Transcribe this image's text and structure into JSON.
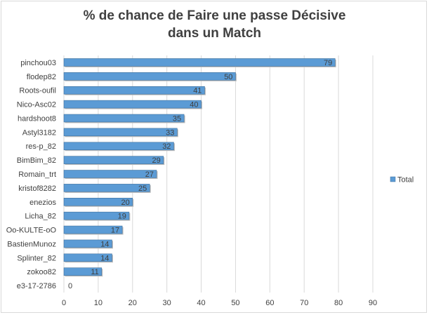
{
  "chart_data": {
    "type": "bar",
    "orientation": "horizontal",
    "title": "% de chance de Faire une passe Décisive\ndans un Match",
    "categories": [
      "pinchou03",
      "flodep82",
      "Roots-oufil",
      "Nico-Asc02",
      "hardshoot8",
      "Astyl3182",
      "res-p_82",
      "BimBim_82",
      "Romain_trt",
      "kristof8282",
      "enezios",
      "Licha_82",
      "Oo-KULTE-oO",
      "BastienMunoz",
      "Splinter_82",
      "zokoo82",
      "e3-17-2786"
    ],
    "series": [
      {
        "name": "Total",
        "values": [
          79,
          50,
          41,
          40,
          35,
          33,
          32,
          29,
          27,
          25,
          20,
          19,
          17,
          14,
          14,
          11,
          0
        ]
      }
    ],
    "xlim": [
      0,
      90
    ],
    "xticks": [
      0,
      10,
      20,
      30,
      40,
      50,
      60,
      70,
      80,
      90
    ],
    "grid": true,
    "data_labels": true,
    "legend_position": "right",
    "colors": {
      "bar": "#5b9bd5",
      "bar_edge": "#41719c",
      "grid": "#d9d9d9",
      "text": "#404040"
    }
  }
}
